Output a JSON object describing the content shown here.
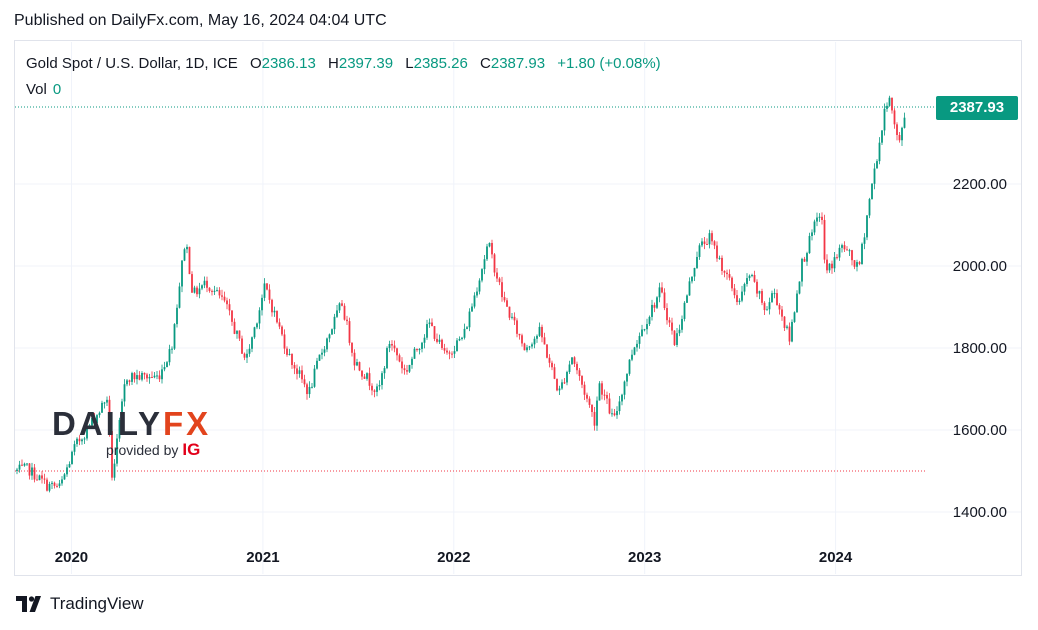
{
  "published": "Published on DailyFx.com, May 16, 2024 04:04 UTC",
  "legend": {
    "symbol": "Gold Spot / U.S. Dollar, 1D, ICE",
    "open_label": "O",
    "open": "2386.13",
    "high_label": "H",
    "high": "2397.39",
    "low_label": "L",
    "low": "2385.26",
    "close_label": "C",
    "close": "2387.93",
    "change": "+1.80 (+0.08%)",
    "vol_label": "Vol",
    "vol": "0"
  },
  "last_price_label": "2387.93",
  "watermark": {
    "brand_left": "DAILY",
    "brand_right": "FX",
    "provided_by": "provided by",
    "ig": "IG"
  },
  "footer": {
    "brand": "TradingView"
  },
  "colors": {
    "up": "#089981",
    "down": "#f23645",
    "grid": "#f0f3fa",
    "text": "#131722"
  },
  "chart_data": {
    "type": "line",
    "title": "Gold Spot / U.S. Dollar, 1D, ICE",
    "xlabel": "",
    "ylabel": "",
    "x_ticks": [
      "2020",
      "2021",
      "2022",
      "2023",
      "2024"
    ],
    "y_ticks": [
      "1400.00",
      "1600.00",
      "1800.00",
      "2000.00",
      "2200.00"
    ],
    "ylim": [
      1360,
      2420
    ],
    "xlim": [
      "2019-09-15",
      "2024-06-20"
    ],
    "candle_colors": {
      "up": "#089981",
      "down": "#f23645"
    },
    "reference_lines": [
      {
        "value": 2387.93,
        "style": "dotted",
        "color": "#089981"
      },
      {
        "value": 1500,
        "style": "dotted",
        "color": "#f23645"
      }
    ],
    "series": [
      {
        "values": [
          [
            "2019-09-15",
            1500
          ],
          [
            "2019-10-10",
            1505
          ],
          [
            "2019-11-15",
            1465
          ],
          [
            "2019-12-10",
            1460
          ],
          [
            "2020-01-08",
            1560
          ],
          [
            "2020-02-20",
            1640
          ],
          [
            "2020-03-09",
            1680
          ],
          [
            "2020-03-19",
            1480
          ],
          [
            "2020-04-14",
            1730
          ],
          [
            "2020-05-20",
            1730
          ],
          [
            "2020-06-15",
            1730
          ],
          [
            "2020-07-10",
            1800
          ],
          [
            "2020-08-06",
            2070
          ],
          [
            "2020-08-20",
            1930
          ],
          [
            "2020-09-15",
            1960
          ],
          [
            "2020-10-20",
            1910
          ],
          [
            "2020-11-30",
            1770
          ],
          [
            "2021-01-05",
            1950
          ],
          [
            "2021-02-20",
            1780
          ],
          [
            "2021-03-30",
            1690
          ],
          [
            "2021-04-20",
            1780
          ],
          [
            "2021-06-01",
            1910
          ],
          [
            "2021-06-25",
            1770
          ],
          [
            "2021-08-09",
            1690
          ],
          [
            "2021-09-01",
            1820
          ],
          [
            "2021-09-30",
            1740
          ],
          [
            "2021-11-16",
            1860
          ],
          [
            "2021-12-15",
            1780
          ],
          [
            "2022-01-20",
            1830
          ],
          [
            "2022-03-08",
            2055
          ],
          [
            "2022-04-05",
            1920
          ],
          [
            "2022-05-16",
            1800
          ],
          [
            "2022-06-15",
            1840
          ],
          [
            "2022-07-21",
            1690
          ],
          [
            "2022-08-15",
            1780
          ],
          [
            "2022-09-28",
            1620
          ],
          [
            "2022-10-05",
            1720
          ],
          [
            "2022-11-03",
            1620
          ],
          [
            "2022-12-10",
            1800
          ],
          [
            "2023-01-31",
            1940
          ],
          [
            "2023-02-28",
            1810
          ],
          [
            "2023-04-13",
            2040
          ],
          [
            "2023-05-04",
            2070
          ],
          [
            "2023-06-30",
            1910
          ],
          [
            "2023-07-20",
            1980
          ],
          [
            "2023-08-21",
            1890
          ],
          [
            "2023-09-05",
            1940
          ],
          [
            "2023-10-05",
            1820
          ],
          [
            "2023-10-27",
            2000
          ],
          [
            "2023-12-04",
            2140
          ],
          [
            "2023-12-13",
            1980
          ],
          [
            "2024-01-15",
            2050
          ],
          [
            "2024-02-14",
            1990
          ],
          [
            "2024-03-08",
            2180
          ],
          [
            "2024-04-12",
            2430
          ],
          [
            "2024-04-17",
            2380
          ],
          [
            "2024-05-01",
            2290
          ],
          [
            "2024-05-10",
            2360
          ],
          [
            "2024-05-16",
            2388
          ]
        ]
      }
    ]
  }
}
